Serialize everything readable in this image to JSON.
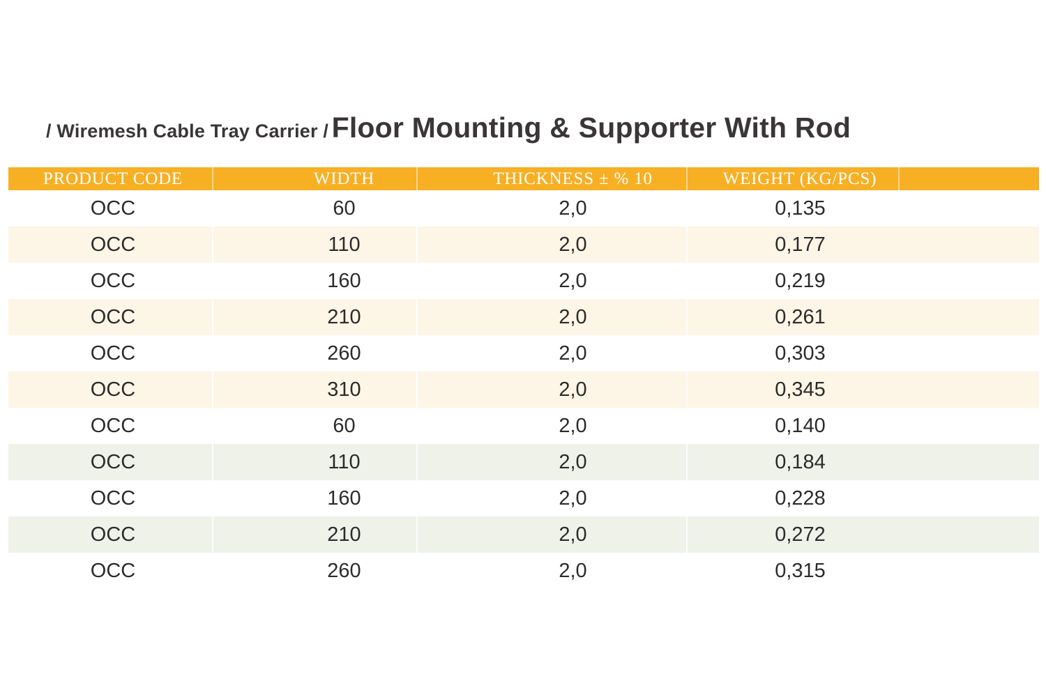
{
  "page": {
    "breadcrumb": "/ Wiremesh Cable Tray Carrier /",
    "title": "Floor Mounting & Supporter With Rod"
  },
  "colors": {
    "header_bg": "#F7AF23",
    "row_cream": "#FDF5E6",
    "row_green": "#EFF2E9",
    "header_text": "#FFFFFF",
    "body_text": "#2B2B2B",
    "title_text": "#3A3637"
  },
  "table": {
    "columns": [
      "PRODUCT CODE",
      "WIDTH",
      "THICKNESS ± % 10",
      "WEIGHT (KG/PCS)"
    ],
    "rows": [
      {
        "product_code": "OCC",
        "width": "60",
        "thickness": "2,0",
        "weight": "0,135",
        "tint": "none"
      },
      {
        "product_code": "OCC",
        "width": "110",
        "thickness": "2,0",
        "weight": "0,177",
        "tint": "cream"
      },
      {
        "product_code": "OCC",
        "width": "160",
        "thickness": "2,0",
        "weight": "0,219",
        "tint": "none"
      },
      {
        "product_code": "OCC",
        "width": "210",
        "thickness": "2,0",
        "weight": "0,261",
        "tint": "cream"
      },
      {
        "product_code": "OCC",
        "width": "260",
        "thickness": "2,0",
        "weight": "0,303",
        "tint": "none"
      },
      {
        "product_code": "OCC",
        "width": "310",
        "thickness": "2,0",
        "weight": "0,345",
        "tint": "cream"
      },
      {
        "product_code": "OCC",
        "width": "60",
        "thickness": "2,0",
        "weight": "0,140",
        "tint": "none"
      },
      {
        "product_code": "OCC",
        "width": "110",
        "thickness": "2,0",
        "weight": "0,184",
        "tint": "green"
      },
      {
        "product_code": "OCC",
        "width": "160",
        "thickness": "2,0",
        "weight": "0,228",
        "tint": "none"
      },
      {
        "product_code": "OCC",
        "width": "210",
        "thickness": "2,0",
        "weight": "0,272",
        "tint": "green"
      },
      {
        "product_code": "OCC",
        "width": "260",
        "thickness": "2,0",
        "weight": "0,315",
        "tint": "none"
      }
    ]
  }
}
